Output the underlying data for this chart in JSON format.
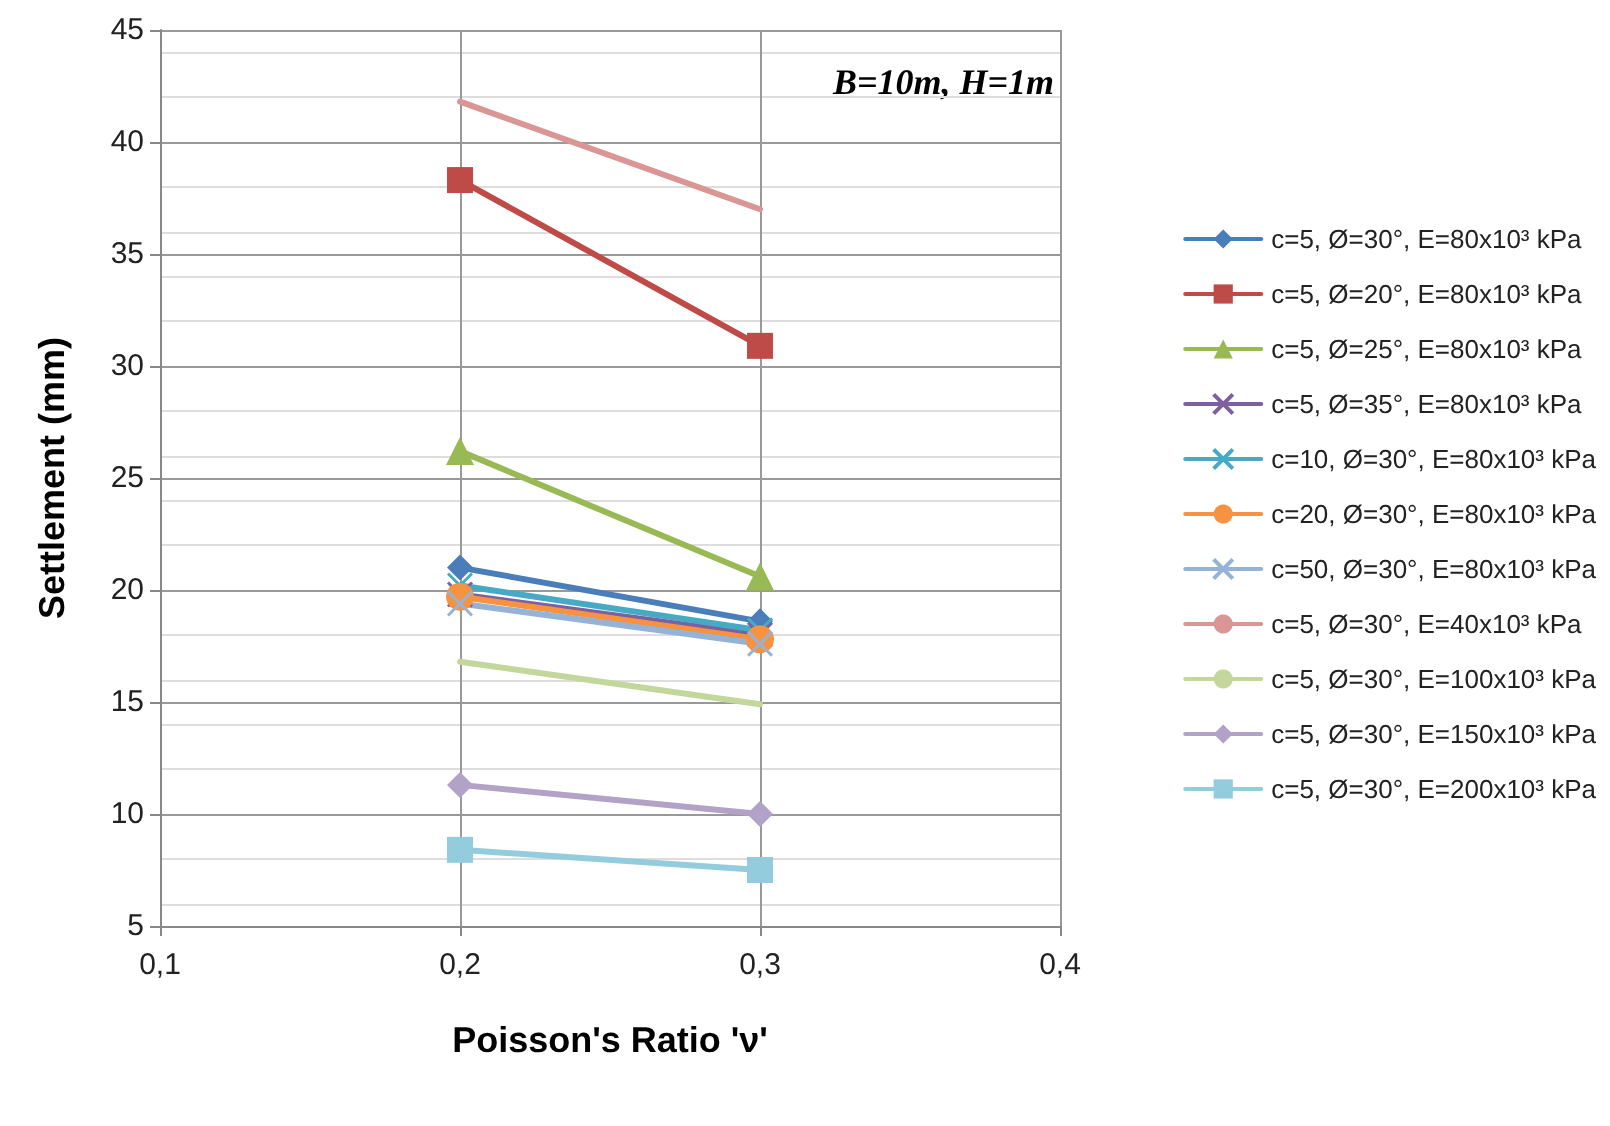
{
  "chart_data": {
    "type": "line",
    "xlabel": "Poisson's Ratio 'ν'",
    "ylabel": "Settlement (mm)",
    "annotations": [
      "B=10m, H=1m"
    ],
    "x": [
      0.2,
      0.3
    ],
    "xlim": [
      0.1,
      0.4
    ],
    "xticks": [
      {
        "value": 0.1,
        "label": "0,1"
      },
      {
        "value": 0.2,
        "label": "0,2"
      },
      {
        "value": 0.3,
        "label": "0,3"
      },
      {
        "value": 0.4,
        "label": "0,4"
      }
    ],
    "ylim": [
      5,
      45
    ],
    "yticks": [
      5,
      10,
      15,
      20,
      25,
      30,
      35,
      40,
      45
    ],
    "grid": true,
    "legend": "right",
    "line_style": "solid",
    "series": [
      {
        "name": "c=5, Ø=30°, E=80x10³ kPa",
        "color": "#4a7ebb",
        "marker": "diamond",
        "values": [
          21.0,
          18.6
        ]
      },
      {
        "name": "c=5, Ø=20°, E=80x10³ kPa",
        "color": "#be4b48",
        "marker": "square",
        "values": [
          38.3,
          30.9
        ]
      },
      {
        "name": "c=5, Ø=25°, E=80x10³ kPa",
        "color": "#98b954",
        "marker": "triangle",
        "values": [
          26.2,
          20.6
        ]
      },
      {
        "name": "c=5, Ø=35°, E=80x10³ kPa",
        "color": "#7d60a0",
        "marker": "cross",
        "values": [
          19.8,
          18.0
        ]
      },
      {
        "name": "c=10, Ø=30°, E=80x10³ kPa",
        "color": "#46aac5",
        "marker": "cross",
        "values": [
          20.2,
          18.2
        ]
      },
      {
        "name": "c=20, Ø=30°, E=80x10³ kPa",
        "color": "#f69240",
        "marker": "circle",
        "values": [
          19.7,
          17.8
        ]
      },
      {
        "name": "c=50, Ø=30°, E=80x10³ kPa",
        "color": "#95b3d7",
        "marker": "cross",
        "values": [
          19.4,
          17.6
        ]
      },
      {
        "name": "c=5, Ø=30°, E=40x10³ kPa",
        "color": "#d99694",
        "marker": "none",
        "values": [
          41.8,
          37.0
        ]
      },
      {
        "name": "c=5, Ø=30°, E=100x10³ kPa",
        "color": "#c3d69b",
        "marker": "none",
        "values": [
          16.8,
          14.9
        ]
      },
      {
        "name": "c=5, Ø=30°, E=150x10³ kPa",
        "color": "#b3a2c7",
        "marker": "diamond",
        "values": [
          11.3,
          10.0
        ]
      },
      {
        "name": "c=5, Ø=30°, E=200x10³ kPa",
        "color": "#93cddd",
        "marker": "square",
        "values": [
          8.4,
          7.5
        ]
      }
    ]
  }
}
